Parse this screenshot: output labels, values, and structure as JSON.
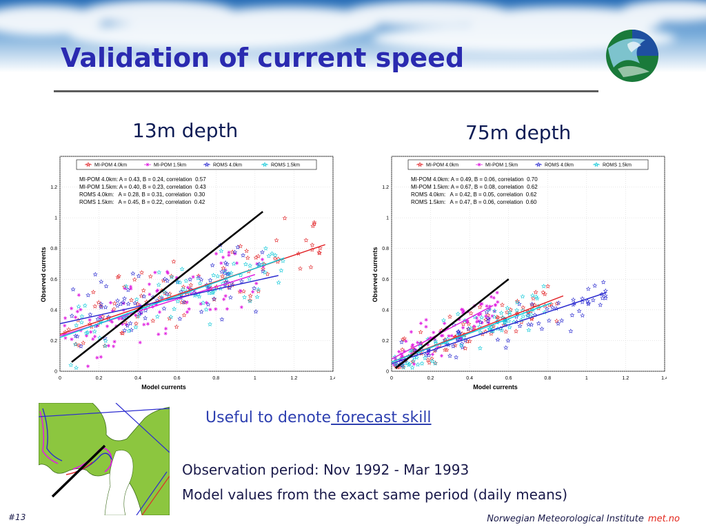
{
  "slide": {
    "title": "Validation of current speed",
    "number": "#13",
    "institute": "Norwegian Meteorological Institute",
    "brand": "met.no",
    "skill_prefix": "Useful to denote",
    "skill_link": " forecast skill",
    "observation_period": "Observation period: Nov 1992 - Mar 1993",
    "model_values": "Model values from the exact same period (daily means)",
    "depth_left": "13m depth",
    "depth_right": "75m depth",
    "colors": {
      "title": "#2a2ab0",
      "mipom40": "#e2272b",
      "mipom15": "#e020e0",
      "roms40": "#2b2bd0",
      "roms15": "#10c8d8",
      "identity": "#000000"
    }
  },
  "chart_data": [
    {
      "type": "scatter",
      "depth": "13m depth",
      "xlabel": "Model currents",
      "ylabel": "Observed currents",
      "xlim": [
        0,
        1.4
      ],
      "ylim": [
        0,
        1.4
      ],
      "xticks": [
        "0",
        "0.2",
        "0.4",
        "0.6",
        "0.8",
        "1",
        "1.2",
        "1.4"
      ],
      "yticks": [
        "0",
        "0.2",
        "0.4",
        "0.6",
        "0.8",
        "1",
        "1.2"
      ],
      "grid": true,
      "legend": [
        "MI-POM 4.0km",
        "MI-POM 1.5km",
        "ROMS 4.0km",
        "ROMS 1.5km"
      ],
      "legend_position": "top",
      "stats": [
        "MI-POM 4.0km: A = 0.43, B = 0.24, correlation  0.57",
        "MI-POM 1.5km: A = 0.40, B = 0.23, correlation  0.43",
        "ROMS 4.0km:   A = 0.28, B = 0.31, correlation  0.30",
        "ROMS 1.5km:   A = 0.45, B = 0.22, correlation  0.42"
      ],
      "series": [
        {
          "name": "MI-POM 4.0km",
          "color": "#e2272b",
          "marker": "star",
          "fit": {
            "A": 0.43,
            "B": 0.24,
            "x0": 0.0,
            "x1": 1.36
          },
          "cloud": {
            "xmin": 0.02,
            "xmax": 1.38,
            "spread": 0.16,
            "n": 95
          }
        },
        {
          "name": "MI-POM 1.5km",
          "color": "#e020e0",
          "marker": "plus",
          "fit": {
            "A": 0.4,
            "B": 0.23,
            "x0": 0.0,
            "x1": 1.0
          },
          "cloud": {
            "xmin": 0.02,
            "xmax": 1.05,
            "spread": 0.17,
            "n": 95
          }
        },
        {
          "name": "ROMS 4.0km",
          "color": "#2b2bd0",
          "marker": "star",
          "fit": {
            "A": 0.28,
            "B": 0.31,
            "x0": 0.0,
            "x1": 1.12
          },
          "cloud": {
            "xmin": 0.05,
            "xmax": 1.05,
            "spread": 0.17,
            "n": 85
          }
        },
        {
          "name": "ROMS 1.5km",
          "color": "#10c8d8",
          "marker": "star",
          "fit": {
            "A": 0.45,
            "B": 0.22,
            "x0": 0.0,
            "x1": 1.15
          },
          "cloud": {
            "xmin": 0.05,
            "xmax": 1.15,
            "spread": 0.16,
            "n": 85
          }
        }
      ],
      "identity_line": {
        "x0": 0.06,
        "x1": 1.04
      }
    },
    {
      "type": "scatter",
      "depth": "75m depth",
      "xlabel": "Model currents",
      "ylabel": "Observed currents",
      "xlim": [
        0,
        1.4
      ],
      "ylim": [
        0,
        1.4
      ],
      "xticks": [
        "0",
        "0.2",
        "0.4",
        "0.6",
        "0.8",
        "1",
        "1.2",
        "1.4"
      ],
      "yticks": [
        "0",
        "0.2",
        "0.4",
        "0.6",
        "0.8",
        "1",
        "1.2"
      ],
      "grid": true,
      "legend": [
        "MI-POM 4.0km",
        "MI-POM 1.5km",
        "ROMS 4.0km",
        "ROMS 1.5km"
      ],
      "legend_position": "top",
      "stats": [
        "MI-POM 4.0km: A = 0.49, B = 0.06, correlation  0.70",
        "MI-POM 1.5km: A = 0.67, B = 0.08, correlation  0.62",
        "ROMS 4.0km:   A = 0.42, B = 0.05, correlation  0.62",
        "ROMS 1.5km:   A = 0.47, B = 0.06, correlation  0.60"
      ],
      "series": [
        {
          "name": "MI-POM 4.0km",
          "color": "#e2272b",
          "marker": "star",
          "fit": {
            "A": 0.49,
            "B": 0.06,
            "x0": 0.0,
            "x1": 0.88
          },
          "cloud": {
            "xmin": 0.01,
            "xmax": 0.85,
            "spread": 0.09,
            "n": 85
          }
        },
        {
          "name": "MI-POM 1.5km",
          "color": "#e020e0",
          "marker": "plus",
          "fit": {
            "A": 0.67,
            "B": 0.08,
            "x0": 0.0,
            "x1": 0.52
          },
          "cloud": {
            "xmin": 0.01,
            "xmax": 0.55,
            "spread": 0.09,
            "n": 80
          }
        },
        {
          "name": "ROMS 4.0km",
          "color": "#2b2bd0",
          "marker": "star",
          "fit": {
            "A": 0.42,
            "B": 0.05,
            "x0": 0.0,
            "x1": 1.1
          },
          "cloud": {
            "xmin": 0.01,
            "xmax": 1.1,
            "spread": 0.09,
            "n": 85
          }
        },
        {
          "name": "ROMS 1.5km",
          "color": "#10c8d8",
          "marker": "star",
          "fit": {
            "A": 0.47,
            "B": 0.06,
            "x0": 0.0,
            "x1": 0.82
          },
          "cloud": {
            "xmin": 0.01,
            "xmax": 0.8,
            "spread": 0.09,
            "n": 80
          }
        }
      ],
      "identity_line": {
        "x0": 0.02,
        "x1": 0.6
      }
    }
  ]
}
